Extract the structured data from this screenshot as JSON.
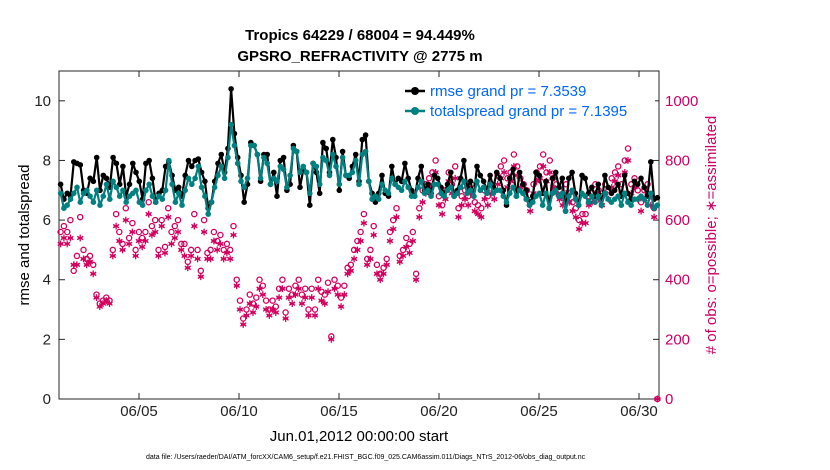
{
  "chart_data": {
    "type": "line",
    "title": "Tropics 64229 / 68004 = 94.449%",
    "subtitle": "GPSRO_REFRACTIVITY @ 2775 m",
    "xlabel": "Jun.01,2012 00:00:00 start",
    "ylabel": "rmse and totalspread",
    "y2label": "# of obs: o=possible; ∗=assimilated",
    "xlim": [
      1,
      31
    ],
    "ylim": [
      0,
      11
    ],
    "y2lim": [
      0,
      1100
    ],
    "x_ticks": [
      5,
      10,
      15,
      20,
      25,
      30
    ],
    "x_tick_labels": [
      "06/05",
      "06/10",
      "06/15",
      "06/20",
      "06/25",
      "06/30"
    ],
    "y_ticks": [
      0,
      2,
      4,
      6,
      8,
      10
    ],
    "y2_ticks": [
      0,
      200,
      400,
      600,
      800,
      1000
    ],
    "footer": "data file: /Users/raeder/DAI/ATM_forcXX/CAM6_setup/f.e21.FHIST_BGC.f09_025.CAM6assim.011/Diags_NTrS_2012-06/obs_diag_output.nc",
    "colors": {
      "rmse": "#000000",
      "spread": "#008080",
      "obs": "#d4005f",
      "legend_text": "#0066ff",
      "right_axis": "#cc0066"
    },
    "series": [
      {
        "name": "rmse grand pr = 7.3539",
        "axis": "left",
        "marker": "dot",
        "values": [
          7.2,
          6.7,
          6.9,
          6.8,
          7.95,
          7.9,
          7.85,
          7.0,
          6.9,
          7.4,
          7.3,
          8.1,
          7.0,
          7.5,
          7.4,
          7.1,
          8.1,
          7.9,
          7.2,
          7.8,
          6.8,
          7.2,
          7.9,
          7.6,
          7.3,
          6.7,
          7.9,
          8.0,
          7.4,
          6.6,
          6.9,
          7.0,
          7.8,
          7.95,
          7.5,
          7.0,
          7.1,
          6.8,
          7.5,
          8.0,
          7.8,
          8.0,
          8.05,
          7.6,
          7.3,
          6.4,
          6.6,
          7.3,
          7.9,
          8.2,
          7.6,
          8.4,
          10.4,
          8.9,
          8.1,
          7.5,
          6.6,
          7.2,
          8.6,
          8.5,
          8.2,
          7.3,
          8.2,
          8.2,
          7.2,
          7.6,
          6.8,
          8.0,
          8.1,
          7.0,
          7.2,
          8.5,
          8.3,
          7.1,
          7.7,
          7.6,
          6.5,
          7.9,
          7.6,
          6.9,
          8.6,
          8.4,
          7.6,
          8.7,
          8.1,
          7.0,
          8.3,
          7.5,
          7.4,
          7.8,
          8.2,
          7.3,
          8.7,
          8.85,
          7.3,
          6.9,
          6.6,
          6.9,
          7.5,
          6.9,
          6.8,
          7.8,
          7.2,
          7.4,
          7.3,
          7.9,
          7.4,
          7.0,
          6.8,
          7.4,
          7.8,
          7.0,
          7.2,
          6.9,
          7.5,
          7.4,
          7.1,
          6.9,
          7.2,
          7.6,
          6.8,
          7.0,
          7.4,
          8.0,
          7.1,
          7.3,
          6.8,
          7.8,
          7.5,
          7.3,
          7.0,
          7.5,
          7.1,
          7.6,
          7.4,
          7.0,
          6.5,
          7.4,
          7.7,
          6.8,
          7.6,
          7.2,
          7.0,
          6.5,
          6.8,
          7.6,
          7.5,
          6.9,
          7.3,
          6.4,
          7.4,
          7.6,
          7.1,
          7.4,
          6.3,
          7.4,
          7.6,
          6.9,
          6.5,
          7.5,
          7.4,
          6.9,
          7.1,
          6.8,
          7.2,
          6.5,
          7.5,
          7.1,
          6.9,
          7.0,
          7.2,
          6.8,
          7.5,
          6.9,
          6.7,
          7.3,
          7.2,
          7.4,
          7.1,
          6.8,
          7.95,
          6.7,
          6.75
        ]
      },
      {
        "name": "totalspread grand pr = 7.1395",
        "axis": "left",
        "marker": "dot",
        "values": [
          6.9,
          6.4,
          6.5,
          6.7,
          6.9,
          7.1,
          6.6,
          6.9,
          7.0,
          6.8,
          6.6,
          7.0,
          6.5,
          6.8,
          7.2,
          6.7,
          7.3,
          7.1,
          6.8,
          7.0,
          6.6,
          6.8,
          6.9,
          7.0,
          6.6,
          6.5,
          7.0,
          7.2,
          6.8,
          6.6,
          6.8,
          6.7,
          7.0,
          8.0,
          7.2,
          6.6,
          6.9,
          6.5,
          7.0,
          7.4,
          7.2,
          7.4,
          7.8,
          7.1,
          6.8,
          6.2,
          6.6,
          7.1,
          7.5,
          7.8,
          7.4,
          8.1,
          9.2,
          8.5,
          7.9,
          7.3,
          7.1,
          7.4,
          8.5,
          8.5,
          8.2,
          7.4,
          8.1,
          7.9,
          7.2,
          7.4,
          7.3,
          7.8,
          7.7,
          7.1,
          7.5,
          8.4,
          8.3,
          7.6,
          7.8,
          7.6,
          6.9,
          7.9,
          7.8,
          7.2,
          8.1,
          8.0,
          7.5,
          8.2,
          7.8,
          7.2,
          8.1,
          7.5,
          7.5,
          7.6,
          8.0,
          7.2,
          8.2,
          8.3,
          7.3,
          6.7,
          6.8,
          6.7,
          7.2,
          7.0,
          6.9,
          7.4,
          7.2,
          7.1,
          7.0,
          7.3,
          7.1,
          6.8,
          6.8,
          7.1,
          7.3,
          6.9,
          7.0,
          6.8,
          7.2,
          7.2,
          6.9,
          6.8,
          7.0,
          7.1,
          6.8,
          6.9,
          7.1,
          7.3,
          6.9,
          7.0,
          6.8,
          7.3,
          7.0,
          7.1,
          6.9,
          7.2,
          6.9,
          7.0,
          7.0,
          6.8,
          6.6,
          6.9,
          7.1,
          6.8,
          7.0,
          6.9,
          6.7,
          6.5,
          6.6,
          6.8,
          6.9,
          6.5,
          6.9,
          6.4,
          6.9,
          7.0,
          6.8,
          6.9,
          6.3,
          6.8,
          7.0,
          6.7,
          6.5,
          6.9,
          6.8,
          6.6,
          6.8,
          6.6,
          6.8,
          6.5,
          6.9,
          6.7,
          6.6,
          6.7,
          6.8,
          6.5,
          6.9,
          6.6,
          6.5,
          6.7,
          6.7,
          6.8,
          6.7,
          6.5,
          6.9,
          6.4,
          6.5
        ]
      },
      {
        "name": "possible obs",
        "axis": "right",
        "marker": "o",
        "values": [
          560,
          580,
          560,
          600,
          430,
          480,
          610,
          500,
          470,
          480,
          450,
          350,
          320,
          330,
          340,
          330,
          500,
          620,
          560,
          520,
          640,
          540,
          590,
          500,
          560,
          540,
          560,
          660,
          580,
          600,
          500,
          600,
          510,
          640,
          560,
          580,
          600,
          520,
          520,
          460,
          500,
          620,
          500,
          430,
          600,
          490,
          500,
          560,
          530,
          550,
          500,
          520,
          500,
          580,
          400,
          330,
          270,
          300,
          350,
          320,
          340,
          400,
          380,
          330,
          300,
          330,
          310,
          370,
          400,
          290,
          370,
          350,
          380,
          400,
          350,
          370,
          300,
          370,
          300,
          400,
          360,
          350,
          390,
          210,
          400,
          380,
          340,
          380,
          440,
          450,
          500,
          530,
          560,
          620,
          470,
          500,
          580,
          450,
          420,
          440,
          470,
          560,
          600,
          640,
          480,
          500,
          540,
          520,
          560,
          420,
          640,
          700,
          720,
          740,
          760,
          800,
          680,
          650,
          700,
          760,
          720,
          780,
          640,
          680,
          700,
          680,
          720,
          660,
          650,
          640,
          700,
          680,
          720,
          700,
          750,
          780,
          800,
          740,
          760,
          820,
          780,
          740,
          720,
          700,
          660,
          720,
          760,
          780,
          820,
          760,
          800,
          740,
          720,
          700,
          680,
          720,
          690,
          660,
          640,
          600,
          620,
          620,
          680,
          690,
          720,
          700,
          680,
          720,
          700,
          740,
          760,
          780,
          720,
          800,
          840,
          720,
          740,
          700,
          660,
          700,
          720,
          680,
          640,
          0
        ]
      },
      {
        "name": "assimilated obs",
        "axis": "right",
        "marker": "star",
        "values": [
          520,
          540,
          520,
          540,
          450,
          450,
          540,
          470,
          450,
          460,
          420,
          340,
          310,
          320,
          330,
          320,
          480,
          580,
          530,
          500,
          600,
          520,
          560,
          480,
          530,
          510,
          530,
          620,
          550,
          560,
          480,
          580,
          490,
          610,
          520,
          540,
          560,
          500,
          480,
          440,
          480,
          580,
          470,
          410,
          560,
          470,
          470,
          530,
          500,
          520,
          470,
          490,
          470,
          550,
          380,
          300,
          250,
          280,
          320,
          290,
          310,
          370,
          350,
          300,
          280,
          300,
          290,
          340,
          370,
          270,
          340,
          320,
          350,
          370,
          320,
          340,
          280,
          340,
          280,
          370,
          330,
          320,
          360,
          200,
          370,
          350,
          310,
          350,
          420,
          430,
          470,
          500,
          530,
          590,
          450,
          470,
          550,
          420,
          400,
          420,
          450,
          530,
          570,
          610,
          460,
          480,
          510,
          490,
          530,
          400,
          610,
          660,
          690,
          710,
          720,
          760,
          650,
          620,
          670,
          730,
          690,
          740,
          610,
          650,
          670,
          650,
          690,
          630,
          620,
          610,
          670,
          650,
          690,
          670,
          720,
          740,
          760,
          710,
          730,
          780,
          750,
          710,
          690,
          670,
          630,
          690,
          730,
          740,
          780,
          730,
          760,
          710,
          690,
          670,
          650,
          690,
          660,
          630,
          610,
          570,
          590,
          590,
          650,
          660,
          690,
          670,
          650,
          690,
          670,
          710,
          730,
          750,
          690,
          760,
          800,
          690,
          710,
          670,
          630,
          670,
          690,
          650,
          610,
          0
        ]
      }
    ]
  }
}
